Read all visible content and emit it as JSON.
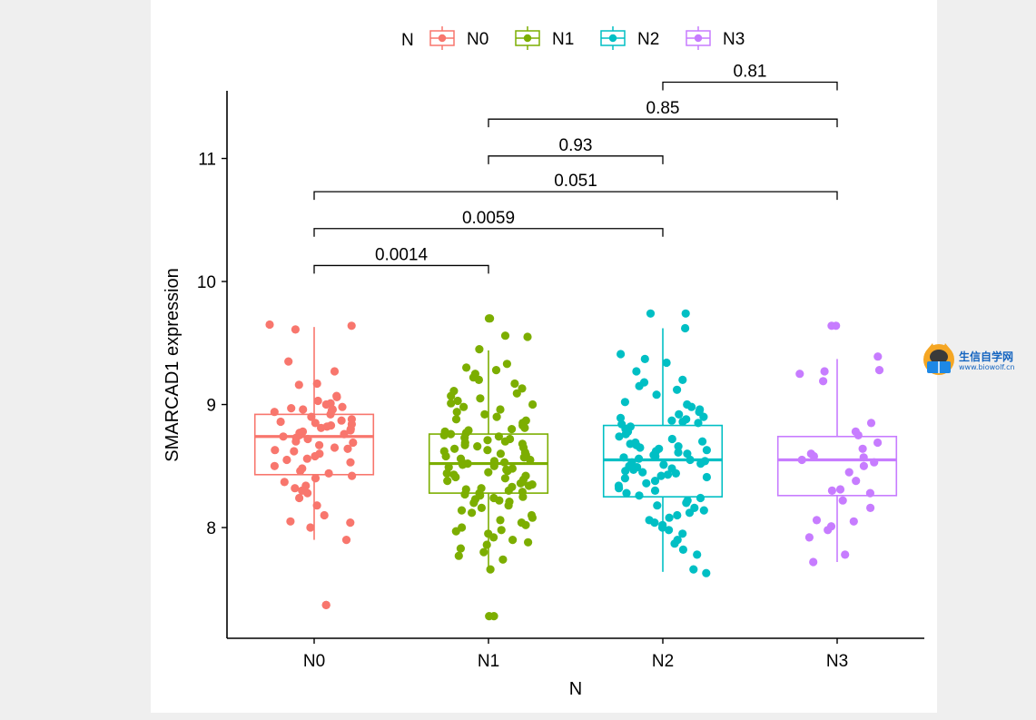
{
  "chart_data": {
    "type": "box",
    "xlabel": "N",
    "ylabel": "SMARCAD1 expression",
    "ylim": [
      7.1,
      11.55
    ],
    "yticks": [
      8,
      9,
      10,
      11
    ],
    "legend": {
      "title": "N",
      "position": "top"
    },
    "categories": [
      "N0",
      "N1",
      "N2",
      "N3"
    ],
    "series": [
      {
        "name": "N0",
        "color": "#F8766D",
        "box": {
          "q1": 8.43,
          "median": 8.74,
          "q3": 8.92,
          "whisker_low": 7.9,
          "whisker_high": 9.63
        },
        "points": [
          9.65,
          9.64,
          9.61,
          9.35,
          9.27,
          9.17,
          9.16,
          9.07,
          9.06,
          9.03,
          9.01,
          9.0,
          8.98,
          8.97,
          8.96,
          8.96,
          8.95,
          8.94,
          8.92,
          8.9,
          8.88,
          8.87,
          8.86,
          8.85,
          8.84,
          8.83,
          8.82,
          8.81,
          8.8,
          8.79,
          8.78,
          8.77,
          8.76,
          8.75,
          8.74,
          8.73,
          8.72,
          8.7,
          8.69,
          8.67,
          8.65,
          8.64,
          8.63,
          8.62,
          8.6,
          8.58,
          8.56,
          8.55,
          8.53,
          8.5,
          8.48,
          8.46,
          8.44,
          8.42,
          8.4,
          8.37,
          8.34,
          8.32,
          8.3,
          8.28,
          8.24,
          8.18,
          8.1,
          8.05,
          8.04,
          8.0,
          7.9,
          7.37,
          7.37
        ]
      },
      {
        "name": "N1",
        "color": "#7CAE00",
        "box": {
          "q1": 8.28,
          "median": 8.52,
          "q3": 8.76,
          "whisker_low": 7.66,
          "whisker_high": 9.44
        },
        "points": [
          9.7,
          9.7,
          9.56,
          9.55,
          9.45,
          9.33,
          9.3,
          9.28,
          9.25,
          9.22,
          9.2,
          9.17,
          9.13,
          9.11,
          9.09,
          9.07,
          9.05,
          9.03,
          9.01,
          9.0,
          8.98,
          8.96,
          8.94,
          8.92,
          8.9,
          8.88,
          8.87,
          8.85,
          8.84,
          8.83,
          8.81,
          8.8,
          8.79,
          8.78,
          8.77,
          8.76,
          8.75,
          8.74,
          8.73,
          8.72,
          8.71,
          8.7,
          8.69,
          8.68,
          8.67,
          8.66,
          8.65,
          8.64,
          8.63,
          8.62,
          8.61,
          8.6,
          8.59,
          8.58,
          8.57,
          8.56,
          8.55,
          8.54,
          8.53,
          8.52,
          8.52,
          8.51,
          8.5,
          8.49,
          8.48,
          8.47,
          8.46,
          8.45,
          8.44,
          8.43,
          8.42,
          8.41,
          8.4,
          8.39,
          8.38,
          8.37,
          8.36,
          8.35,
          8.34,
          8.33,
          8.32,
          8.31,
          8.3,
          8.29,
          8.28,
          8.27,
          8.26,
          8.25,
          8.24,
          8.23,
          8.22,
          8.21,
          8.2,
          8.18,
          8.16,
          8.14,
          8.12,
          8.1,
          8.08,
          8.06,
          8.04,
          8.02,
          8.0,
          7.98,
          7.97,
          7.95,
          7.92,
          7.9,
          7.88,
          7.86,
          7.83,
          7.8,
          7.77,
          7.74,
          7.66,
          7.28,
          7.28
        ]
      },
      {
        "name": "N2",
        "color": "#00BFC4",
        "box": {
          "q1": 8.25,
          "median": 8.55,
          "q3": 8.83,
          "whisker_low": 7.64,
          "whisker_high": 9.62
        },
        "points": [
          9.74,
          9.74,
          9.62,
          9.41,
          9.37,
          9.34,
          9.27,
          9.2,
          9.18,
          9.15,
          9.12,
          9.08,
          9.02,
          9.0,
          8.98,
          8.96,
          8.94,
          8.92,
          8.9,
          8.89,
          8.88,
          8.87,
          8.86,
          8.85,
          8.84,
          8.82,
          8.8,
          8.78,
          8.76,
          8.74,
          8.72,
          8.7,
          8.69,
          8.68,
          8.67,
          8.66,
          8.65,
          8.64,
          8.63,
          8.62,
          8.61,
          8.6,
          8.59,
          8.58,
          8.57,
          8.56,
          8.55,
          8.54,
          8.53,
          8.52,
          8.51,
          8.5,
          8.49,
          8.48,
          8.47,
          8.46,
          8.45,
          8.44,
          8.43,
          8.42,
          8.41,
          8.4,
          8.38,
          8.36,
          8.34,
          8.32,
          8.3,
          8.28,
          8.26,
          8.24,
          8.22,
          8.2,
          8.18,
          8.16,
          8.14,
          8.12,
          8.1,
          8.08,
          8.06,
          8.04,
          8.02,
          8.0,
          7.98,
          7.95,
          7.9,
          7.87,
          7.82,
          7.78,
          7.66,
          7.63
        ]
      },
      {
        "name": "N3",
        "color": "#C77CFF",
        "box": {
          "q1": 8.26,
          "median": 8.55,
          "q3": 8.74,
          "whisker_low": 7.72,
          "whisker_high": 9.37
        },
        "points": [
          9.64,
          9.64,
          9.39,
          9.28,
          9.27,
          9.25,
          9.19,
          8.85,
          8.78,
          8.75,
          8.69,
          8.64,
          8.6,
          8.58,
          8.57,
          8.55,
          8.53,
          8.5,
          8.45,
          8.38,
          8.31,
          8.3,
          8.28,
          8.22,
          8.16,
          8.06,
          8.05,
          8.01,
          7.98,
          7.92,
          7.78,
          7.72
        ]
      }
    ],
    "comparisons": [
      {
        "a": "N0",
        "b": "N1",
        "label": "0.0014",
        "y": 10.13
      },
      {
        "a": "N0",
        "b": "N2",
        "label": "0.0059",
        "y": 10.43
      },
      {
        "a": "N0",
        "b": "N3",
        "label": "0.051",
        "y": 10.73
      },
      {
        "a": "N1",
        "b": "N2",
        "label": "0.93",
        "y": 11.02
      },
      {
        "a": "N1",
        "b": "N3",
        "label": "0.85",
        "y": 11.32
      },
      {
        "a": "N2",
        "b": "N3",
        "label": "0.81",
        "y": 11.62
      }
    ]
  },
  "watermark": {
    "title": "生信自学网",
    "url": "www.biowolf.cn"
  }
}
